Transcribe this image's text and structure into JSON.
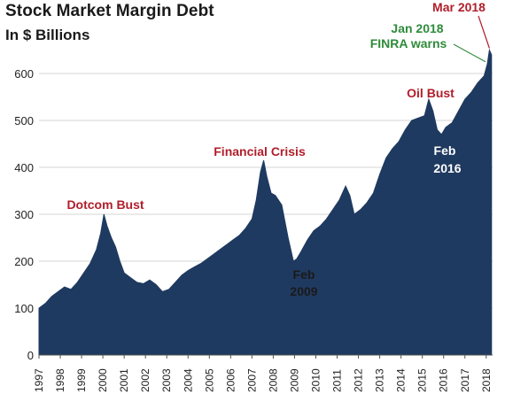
{
  "chart_data": {
    "type": "area",
    "title": "Stock Market Margin Debt",
    "subtitle": "In $ Billions",
    "xlim": [
      1997.0,
      2018.3
    ],
    "ylim": [
      0,
      700
    ],
    "yticks": [
      0,
      100,
      200,
      300,
      400,
      500,
      600
    ],
    "xticks": [
      1997,
      1998,
      1999,
      2000,
      2001,
      2002,
      2003,
      2004,
      2005,
      2006,
      2007,
      2008,
      2009,
      2010,
      2011,
      2012,
      2013,
      2014,
      2015,
      2016,
      2017,
      2018
    ],
    "grid": "horizontal",
    "fill_color": "#1f3a60",
    "series": [
      {
        "x": [
          1997.0,
          1997.3,
          1997.6,
          1997.9,
          1998.2,
          1998.5,
          1998.8,
          1999.1,
          1999.4,
          1999.7,
          1999.9,
          2000.05,
          2000.2,
          2000.4,
          2000.6,
          2000.8,
          2001.0,
          2001.3,
          2001.6,
          2001.9,
          2002.2,
          2002.5,
          2002.8,
          2003.1,
          2003.4,
          2003.7,
          2004.0,
          2004.3,
          2004.6,
          2004.9,
          2005.2,
          2005.5,
          2005.8,
          2006.1,
          2006.4,
          2006.7,
          2007.0,
          2007.2,
          2007.4,
          2007.55,
          2007.7,
          2007.9,
          2008.1,
          2008.4,
          2008.7,
          2008.95,
          2009.1,
          2009.3,
          2009.6,
          2009.9,
          2010.2,
          2010.5,
          2010.8,
          2011.1,
          2011.4,
          2011.6,
          2011.8,
          2012.1,
          2012.4,
          2012.7,
          2013.0,
          2013.3,
          2013.6,
          2013.9,
          2014.2,
          2014.5,
          2014.8,
          2015.1,
          2015.3,
          2015.5,
          2015.7,
          2015.9,
          2016.1,
          2016.4,
          2016.7,
          2017.0,
          2017.3,
          2017.6,
          2017.9,
          2018.05,
          2018.15,
          2018.25
        ],
        "y": [
          100,
          110,
          125,
          135,
          145,
          140,
          155,
          175,
          195,
          225,
          260,
          300,
          275,
          250,
          230,
          200,
          175,
          165,
          155,
          152,
          160,
          150,
          135,
          140,
          155,
          170,
          180,
          188,
          195,
          205,
          215,
          225,
          235,
          245,
          255,
          270,
          290,
          330,
          390,
          415,
          380,
          345,
          340,
          320,
          250,
          200,
          205,
          220,
          245,
          265,
          275,
          290,
          310,
          330,
          360,
          340,
          300,
          310,
          325,
          345,
          385,
          420,
          440,
          455,
          480,
          500,
          505,
          510,
          545,
          520,
          480,
          470,
          485,
          495,
          520,
          545,
          560,
          580,
          595,
          620,
          650,
          640
        ]
      }
    ],
    "annotations": [
      {
        "text": "Dotcom Bust",
        "color": "#b01e2a"
      },
      {
        "text": "Financial Crisis",
        "color": "#b01e2a"
      },
      {
        "text": "Oil Bust",
        "color": "#b01e2a"
      },
      {
        "text": "Mar 2018",
        "color": "#b01e2a"
      },
      {
        "text": "Jan 2018",
        "color": "#2e8b3a"
      },
      {
        "text": "FINRA warns",
        "color": "#2e8b3a"
      },
      {
        "text": "Feb",
        "color": "#1a1a1a"
      },
      {
        "text": "2009",
        "color": "#1a1a1a"
      },
      {
        "text": "Feb",
        "color": "#ffffff"
      },
      {
        "text": "2016",
        "color": "#ffffff"
      }
    ]
  }
}
